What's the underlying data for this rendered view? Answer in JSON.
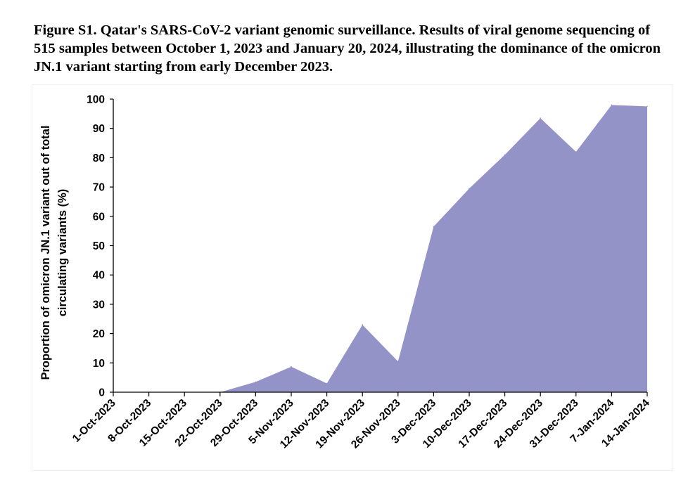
{
  "caption": "Figure S1. Qatar's SARS-CoV-2 variant genomic surveillance. Results of viral genome sequencing of 515 samples between October 1, 2023 and January 20, 2024, illustrating the dominance of the omicron JN.1 variant starting from early December 2023.",
  "chart_data": {
    "type": "area",
    "title": "",
    "xlabel": "",
    "ylabel": "Proportion of omicron JN.1 variant out of total circulating variants (%)",
    "ylabel_lines": [
      "Proportion of omicron JN.1 variant out of total",
      "circulating variants (%)"
    ],
    "categories": [
      "1-Oct-2023",
      "8-Oct-2023",
      "15-Oct-2023",
      "22-Oct-2023",
      "29-Oct-2023",
      "5-Nov-2023",
      "12-Nov-2023",
      "19-Nov-2023",
      "26-Nov-2023",
      "3-Dec-2023",
      "10-Dec-2023",
      "17-Dec-2023",
      "24-Dec-2023",
      "31-Dec-2023",
      "7-Jan-2024",
      "14-Jan-2024"
    ],
    "values": [
      0,
      0,
      0,
      0,
      3.5,
      8.7,
      3.0,
      23.0,
      10.5,
      56.5,
      69.5,
      81.0,
      93.5,
      82.0,
      98.0,
      97.5
    ],
    "ylim": [
      0,
      100
    ],
    "yticks": [
      0,
      10,
      20,
      30,
      40,
      50,
      60,
      70,
      80,
      90,
      100
    ],
    "fill_color": "#9393c8",
    "grid": false,
    "legend": "none"
  }
}
